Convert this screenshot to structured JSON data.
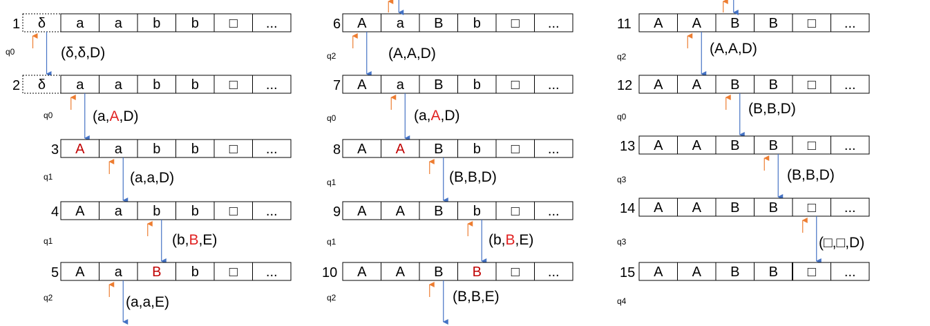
{
  "colors": {
    "head_arrow": "#ed7d31",
    "move_arrow": "#4472c4",
    "highlight": "#c00000",
    "border": "#000000"
  },
  "tapes": [
    {
      "index": "1",
      "state": "q0",
      "cells": [
        "δ",
        "a",
        "a",
        "b",
        "b",
        "□",
        "..."
      ],
      "red": [],
      "dotted": [
        0
      ],
      "head": 0,
      "transition": [
        {
          "t": "(δ,δ,D)"
        }
      ]
    },
    {
      "index": "2",
      "state": "q0",
      "cells": [
        "δ",
        "a",
        "a",
        "b",
        "b",
        "□",
        "..."
      ],
      "red": [],
      "dotted": [
        0
      ],
      "head": 1,
      "transition": [
        {
          "t": "(a,"
        },
        {
          "t": "A",
          "red": true
        },
        {
          "t": ",D)"
        }
      ]
    },
    {
      "index": "3",
      "state": "q1",
      "cells": [
        "A",
        "a",
        "b",
        "b",
        "□",
        "..."
      ],
      "red": [
        0
      ],
      "dotted": [],
      "head": 1,
      "transition": [
        {
          "t": "(a,a,D)"
        }
      ]
    },
    {
      "index": "4",
      "state": "q1",
      "cells": [
        "A",
        "a",
        "b",
        "b",
        "□",
        "..."
      ],
      "red": [],
      "dotted": [],
      "head": 2,
      "transition": [
        {
          "t": "(b,"
        },
        {
          "t": "B",
          "red": true
        },
        {
          "t": ",E)"
        }
      ]
    },
    {
      "index": "5",
      "state": "q2",
      "cells": [
        "A",
        "a",
        "B",
        "b",
        "□",
        "..."
      ],
      "red": [
        2
      ],
      "dotted": [],
      "head": 1,
      "transition": [
        {
          "t": "(a,a,E)"
        }
      ]
    },
    {
      "index": "6",
      "state": "q2",
      "cells": [
        "A",
        "a",
        "B",
        "b",
        "□",
        "..."
      ],
      "red": [],
      "dotted": [],
      "head": 0,
      "transition": [
        {
          "t": "(A,A,D)"
        }
      ]
    },
    {
      "index": "7",
      "state": "q0",
      "cells": [
        "A",
        "a",
        "B",
        "b",
        "□",
        "..."
      ],
      "red": [],
      "dotted": [],
      "head": 1,
      "transition": [
        {
          "t": "(a,"
        },
        {
          "t": "A",
          "red": true
        },
        {
          "t": ",D)"
        }
      ]
    },
    {
      "index": "8",
      "state": "q1",
      "cells": [
        "A",
        "A",
        "B",
        "b",
        "□",
        "..."
      ],
      "red": [
        1
      ],
      "dotted": [],
      "head": 2,
      "transition": [
        {
          "t": "(B,B,D)"
        }
      ]
    },
    {
      "index": "9",
      "state": "q1",
      "cells": [
        "A",
        "A",
        "B",
        "b",
        "□",
        "..."
      ],
      "red": [],
      "dotted": [],
      "head": 3,
      "transition": [
        {
          "t": "(b,"
        },
        {
          "t": "B",
          "red": true
        },
        {
          "t": ",E)"
        }
      ]
    },
    {
      "index": "10",
      "state": "q2",
      "cells": [
        "A",
        "A",
        "B",
        "B",
        "□",
        "..."
      ],
      "red": [
        3
      ],
      "dotted": [],
      "head": 2,
      "transition": [
        {
          "t": "(B,B,E)"
        }
      ]
    },
    {
      "index": "11",
      "state": "q2",
      "cells": [
        "A",
        "A",
        "B",
        "B",
        "□",
        "..."
      ],
      "red": [],
      "dotted": [],
      "head": 1,
      "transition": [
        {
          "t": "(A,A,D)"
        }
      ]
    },
    {
      "index": "12",
      "state": "q0",
      "cells": [
        "A",
        "A",
        "B",
        "B",
        "□",
        "..."
      ],
      "red": [],
      "dotted": [],
      "head": 2,
      "transition": [
        {
          "t": "(B,B,D)"
        }
      ]
    },
    {
      "index": "13",
      "state": "q3",
      "cells": [
        "A",
        "A",
        "B",
        "B",
        "□",
        "..."
      ],
      "red": [],
      "dotted": [],
      "head": 3,
      "transition": [
        {
          "t": "(B,B,D)"
        }
      ]
    },
    {
      "index": "14",
      "state": "q3",
      "cells": [
        "A",
        "A",
        "B",
        "B",
        "□",
        "..."
      ],
      "red": [],
      "dotted": [],
      "head": 4,
      "transition": [
        {
          "t": "(□,□,D)"
        }
      ]
    },
    {
      "index": "15",
      "state": "q4",
      "cells": [
        "A",
        "A",
        "B",
        "B",
        "□",
        "..."
      ],
      "red": [],
      "dotted": [],
      "head": null,
      "transition": []
    }
  ]
}
